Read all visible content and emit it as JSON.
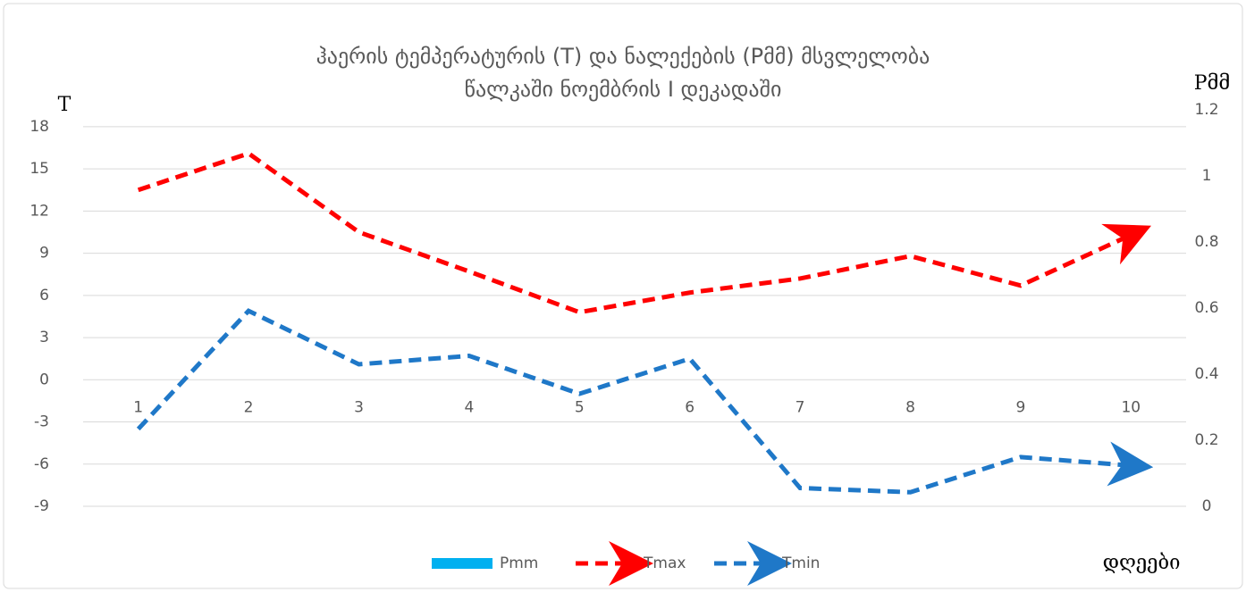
{
  "chart_data": {
    "type": "line",
    "title": [
      "ჰაერის ტემპერატურის (T) და ნალექების (Pმმ) მსვლელობა",
      "წალკაში ნოემბრის I დეკადაში"
    ],
    "y_label": "T",
    "y2_label": "Pმმ",
    "x_label": "დღეები",
    "categories": [
      "1",
      "2",
      "3",
      "4",
      "5",
      "6",
      "7",
      "8",
      "9",
      "10"
    ],
    "series": [
      {
        "name": "Pmm",
        "color": "#00b0f0",
        "type": "bar",
        "axis": "y2",
        "values": [
          0,
          0,
          0,
          0,
          0,
          0,
          0,
          0,
          0,
          0
        ]
      },
      {
        "name": "Tmax",
        "color": "#ff0000",
        "values": [
          13.5,
          16.1,
          10.5,
          7.7,
          4.8,
          6.2,
          7.2,
          8.8,
          6.7,
          10.3
        ]
      },
      {
        "name": "Tmin",
        "color": "#1f78c8",
        "values": [
          -3.5,
          4.9,
          1.1,
          1.7,
          -1.0,
          1.5,
          -7.7,
          -8.0,
          -5.5,
          -6.1
        ]
      }
    ],
    "ylim": [
      -9,
      19.2
    ],
    "yticks": [
      -9,
      -6,
      -3,
      0,
      3,
      6,
      9,
      12,
      15,
      18
    ],
    "y2lim": [
      0,
      1.2
    ],
    "y2ticks": [
      0,
      0.2,
      0.4,
      0.6,
      0.8,
      1,
      1.2
    ],
    "grid": true,
    "legend": "bottom"
  }
}
